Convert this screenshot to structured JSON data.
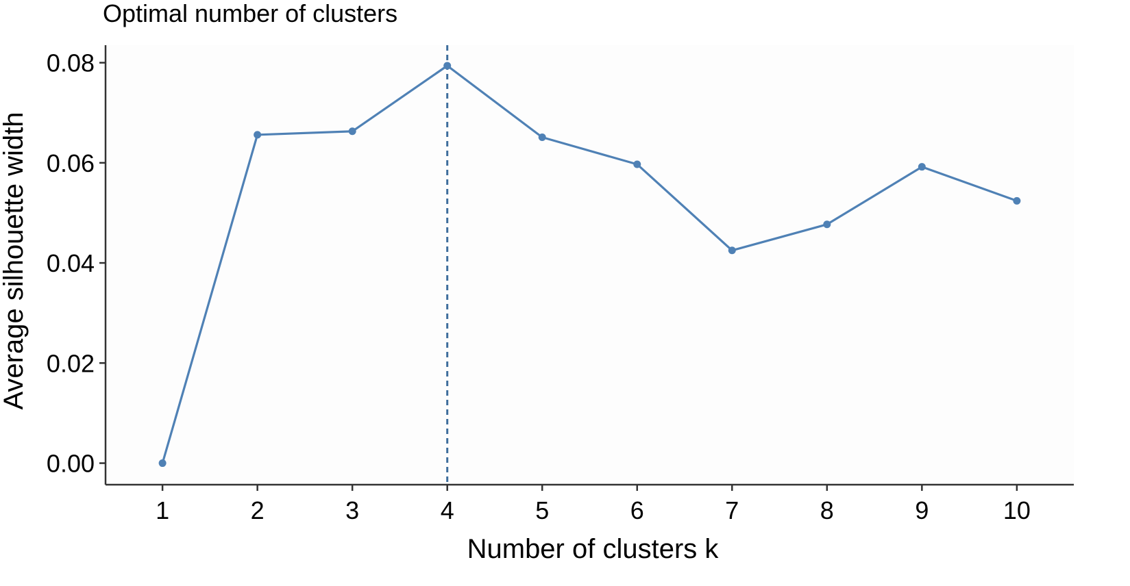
{
  "chart_data": {
    "type": "line",
    "title": "Optimal number of clusters",
    "xlabel": "Number of clusters k",
    "ylabel": "Average silhouette width",
    "x": [
      1,
      2,
      3,
      4,
      5,
      6,
      7,
      8,
      9,
      10
    ],
    "x_tick_labels": [
      "1",
      "2",
      "3",
      "4",
      "5",
      "6",
      "7",
      "8",
      "9",
      "10"
    ],
    "series": [
      {
        "values": [
          0.0,
          0.0656,
          0.0663,
          0.0794,
          0.0651,
          0.0597,
          0.0425,
          0.0477,
          0.0592,
          0.0524
        ]
      }
    ],
    "y_ticks": [
      0.0,
      0.02,
      0.04,
      0.06,
      0.08
    ],
    "y_tick_labels": [
      "0.00",
      "0.02",
      "0.04",
      "0.06",
      "0.08"
    ],
    "xlim": [
      0.4,
      10.6
    ],
    "ylim": [
      -0.0043,
      0.0835
    ],
    "optimal_k": 4,
    "reference_line": "dashed vertical",
    "grid": false,
    "legend": "none",
    "colors": {
      "series": "#4f81b5",
      "reference_line": "#3e6d9c",
      "panel_background": "#fdfdfd",
      "axis": "#333333"
    }
  }
}
